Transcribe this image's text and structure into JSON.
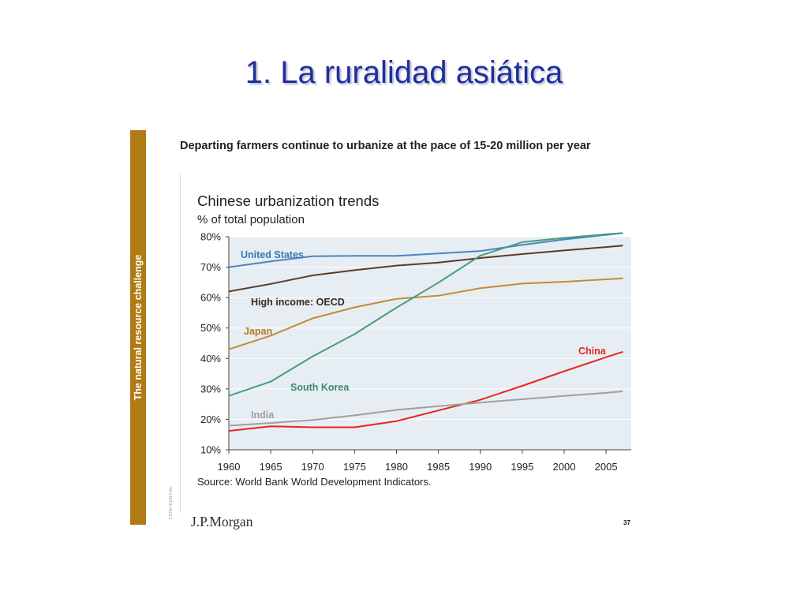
{
  "slide": {
    "title": "1. La ruralidad asiática",
    "sidebar_text": "The natural resource challenge",
    "confidential_label": "CONFIDENTIAL",
    "headline": "Departing farmers continue to urbanize at the pace of 15-20 million per year",
    "source": "Source: World Bank World Development Indicators.",
    "logo": "J.P.Morgan",
    "page_number": "37"
  },
  "colors": {
    "title": "#1f2f9e",
    "sidebar": "#b07a14",
    "plot_background": "#e6eef3"
  },
  "chart_data": {
    "type": "line",
    "title": "Chinese urbanization trends",
    "subtitle": "% of total population",
    "x": [
      1960,
      1965,
      1970,
      1975,
      1980,
      1985,
      1990,
      1995,
      2000,
      2005,
      2007
    ],
    "x_ticks": [
      1960,
      1965,
      1970,
      1975,
      1980,
      1985,
      1990,
      1995,
      2000,
      2005
    ],
    "xlim": [
      1960,
      2008
    ],
    "ylim": [
      10,
      80
    ],
    "y_ticks": [
      10,
      20,
      30,
      40,
      50,
      60,
      70,
      80
    ],
    "y_tick_labels": [
      "10%",
      "20%",
      "30%",
      "40%",
      "50%",
      "60%",
      "70%",
      "80%"
    ],
    "grid": "horizontal",
    "series": [
      {
        "name": "United States",
        "color": "#4a86c0",
        "label_color": "#3a76b0",
        "values": [
          70,
          71.9,
          73.6,
          73.7,
          73.7,
          74.5,
          75.3,
          77.3,
          79.1,
          80.6,
          81.2
        ]
      },
      {
        "name": "High income: OECD",
        "color": "#5e3a28",
        "label_color": "#3a2a20",
        "values": [
          62,
          64.5,
          67.3,
          69,
          70.5,
          71.5,
          73,
          74.3,
          75.5,
          76.6,
          77.1
        ]
      },
      {
        "name": "Japan",
        "color": "#c38a35",
        "label_color": "#b07a20",
        "values": [
          43,
          47.5,
          53.2,
          56.8,
          59.6,
          60.6,
          63.1,
          64.6,
          65.2,
          66,
          66.3
        ]
      },
      {
        "name": "South Korea",
        "color": "#4a9a80",
        "label_color": "#3a8a6a",
        "values": [
          27.7,
          32.4,
          40.7,
          48,
          56.7,
          64.9,
          73.8,
          78.2,
          79.6,
          80.8,
          81.2
        ]
      },
      {
        "name": "China",
        "color": "#e8251f",
        "label_color": "#e8251f",
        "values": [
          16.2,
          17.7,
          17.4,
          17.4,
          19.4,
          22.9,
          26.4,
          31,
          35.8,
          40.4,
          42.2
        ]
      },
      {
        "name": "India",
        "color": "#a0a0a0",
        "label_color": "#a0a0a0",
        "values": [
          17.9,
          18.8,
          19.8,
          21.3,
          23.1,
          24.3,
          25.5,
          26.6,
          27.7,
          28.7,
          29.2
        ]
      }
    ]
  }
}
